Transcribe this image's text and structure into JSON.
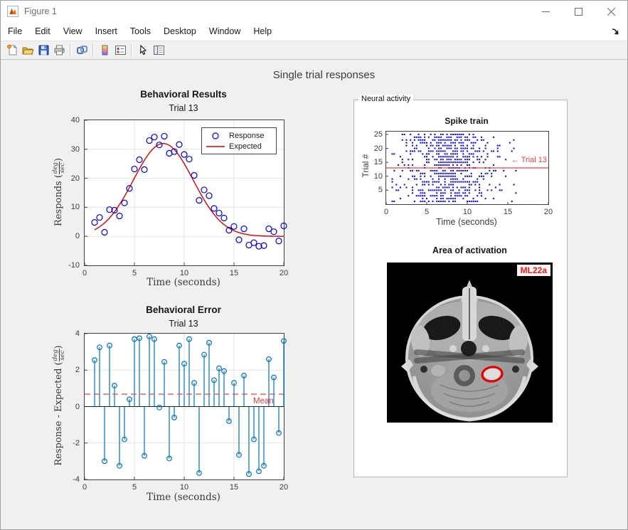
{
  "window": {
    "title": "Figure 1"
  },
  "menubar": {
    "items": [
      "File",
      "Edit",
      "View",
      "Insert",
      "Tools",
      "Desktop",
      "Window",
      "Help"
    ]
  },
  "toolbar": {
    "icons": [
      "new-figure-icon",
      "open-file-icon",
      "save-figure-icon",
      "print-figure-icon",
      "link-plot-icon",
      "colorbar-icon",
      "insert-legend-icon",
      "edit-plot-icon",
      "property-editor-icon"
    ]
  },
  "figure": {
    "suptitle": "Single trial responses"
  },
  "colors": {
    "canvas_bg": "#f0f0f0",
    "axes_bg": "#ffffff",
    "grid": "#e3e3e3",
    "scatter_blue": "#0000dd",
    "expected_red": "#e00000",
    "stem_blue": "#0072bd",
    "mean_red": "#ef5350",
    "raster_blue": "#0000e0",
    "highlight_red": "#f04040",
    "badge_red": "#e02020"
  },
  "chart_data": [
    {
      "type": "scatter",
      "title": "Behavioral Results",
      "subtitle": "Trial 13",
      "xlabel": "Time (seconds)",
      "ylabel": "Responds (deg/sec)",
      "ylabel_parts": {
        "prefix": "Responds",
        "open": "(",
        "num": "deg",
        "den": "sec",
        "close": ")"
      },
      "xlim": [
        0,
        20
      ],
      "ylim": [
        -10,
        40
      ],
      "xticks": [
        0,
        5,
        10,
        15,
        20
      ],
      "yticks": [
        -10,
        0,
        10,
        20,
        30,
        40
      ],
      "grid": true,
      "legend": [
        {
          "label": "Response",
          "marker": "circle",
          "color": "#0000dd"
        },
        {
          "label": "Expected",
          "marker": "line",
          "color": "#e00000"
        }
      ],
      "response": {
        "x": [
          1,
          1.5,
          2,
          2.5,
          3,
          3.5,
          4,
          4.5,
          5,
          5.5,
          6,
          6.5,
          7,
          7.5,
          8,
          8.5,
          9,
          9.5,
          10,
          10.5,
          11,
          11.5,
          12,
          12.5,
          13,
          13.5,
          14,
          14.5,
          15,
          15.5,
          16,
          16.5,
          17,
          17.5,
          18,
          18.5,
          19,
          19.5,
          20
        ],
        "y": [
          4.8,
          6.5,
          1.4,
          9.2,
          9.0,
          7.0,
          11.5,
          16.5,
          23.2,
          26.4,
          23.0,
          33.0,
          34.2,
          31.5,
          34.5,
          28.6,
          29.2,
          31.6,
          28.2,
          26.6,
          21.0,
          12.4,
          16.0,
          14.0,
          9.6,
          8.0,
          6.3,
          2.1,
          3.4,
          -1.2,
          2.6,
          -3.0,
          -2.2,
          -3.4,
          -3.2,
          2.6,
          1.6,
          -1.6,
          3.6
        ]
      },
      "expected": {
        "model": "gaussian",
        "amplitude": 32,
        "center": 7.9,
        "sigma": 3.0
      }
    },
    {
      "type": "stem",
      "title": "Behavioral Error",
      "subtitle": "Trial 13",
      "xlabel": "Time (seconds)",
      "ylabel": "Response - Expected (deg/sec)",
      "ylabel_parts": {
        "prefix": "Response - Expected",
        "open": "(",
        "num": "deg",
        "den": "sec",
        "close": ")"
      },
      "xlim": [
        0,
        20
      ],
      "ylim": [
        -4,
        4
      ],
      "xticks": [
        0,
        5,
        10,
        15,
        20
      ],
      "yticks": [
        -4,
        -2,
        0,
        2,
        4
      ],
      "grid": true,
      "x": [
        1,
        1.5,
        2,
        2.5,
        3,
        3.5,
        4,
        4.5,
        5,
        5.5,
        6,
        6.5,
        7,
        7.5,
        8,
        8.5,
        9,
        9.5,
        10,
        10.5,
        11,
        11.5,
        12,
        12.5,
        13,
        13.5,
        14,
        14.5,
        15,
        15.5,
        16,
        16.5,
        17,
        17.5,
        18,
        18.5,
        19,
        19.5,
        20
      ],
      "y": [
        2.55,
        3.25,
        -3.0,
        3.35,
        1.15,
        -3.25,
        -1.8,
        0.4,
        3.7,
        3.75,
        -2.7,
        3.85,
        3.7,
        -0.05,
        2.45,
        -2.85,
        -0.6,
        3.35,
        2.35,
        3.7,
        1.3,
        -3.65,
        2.85,
        3.5,
        1.45,
        2.1,
        1.95,
        -0.8,
        1.3,
        -2.65,
        1.7,
        -3.7,
        -1.8,
        -3.55,
        -3.25,
        2.6,
        1.6,
        -1.45,
        3.6
      ],
      "mean": 0.68,
      "mean_label": "Mean"
    },
    {
      "type": "raster",
      "panel_label": "Neural activity",
      "title": "Spike train",
      "xlabel": "Time (seconds)",
      "ylabel": "Trial #",
      "xlim": [
        0,
        20
      ],
      "ylim": [
        0,
        26
      ],
      "xticks": [
        0,
        5,
        10,
        15,
        20
      ],
      "yticks": [
        5,
        10,
        15,
        20,
        25
      ],
      "grid": false,
      "highlight": {
        "trial": 13,
        "annotation": "← Trial 13"
      },
      "raster_params": {
        "trials": 25,
        "t_start": 0.75,
        "t_end": 16,
        "t_step": 0.25,
        "peak_time": 7.8,
        "peak_width": 3.0,
        "peak_prob": 0.62,
        "base_prob": 0.05,
        "seed": 7
      }
    },
    {
      "type": "image",
      "title": "Area of activation",
      "badge": "ML22a",
      "annotation": {
        "shape": "ellipse",
        "color": "#e80000",
        "center_rel": [
          0.635,
          0.7
        ]
      }
    }
  ]
}
